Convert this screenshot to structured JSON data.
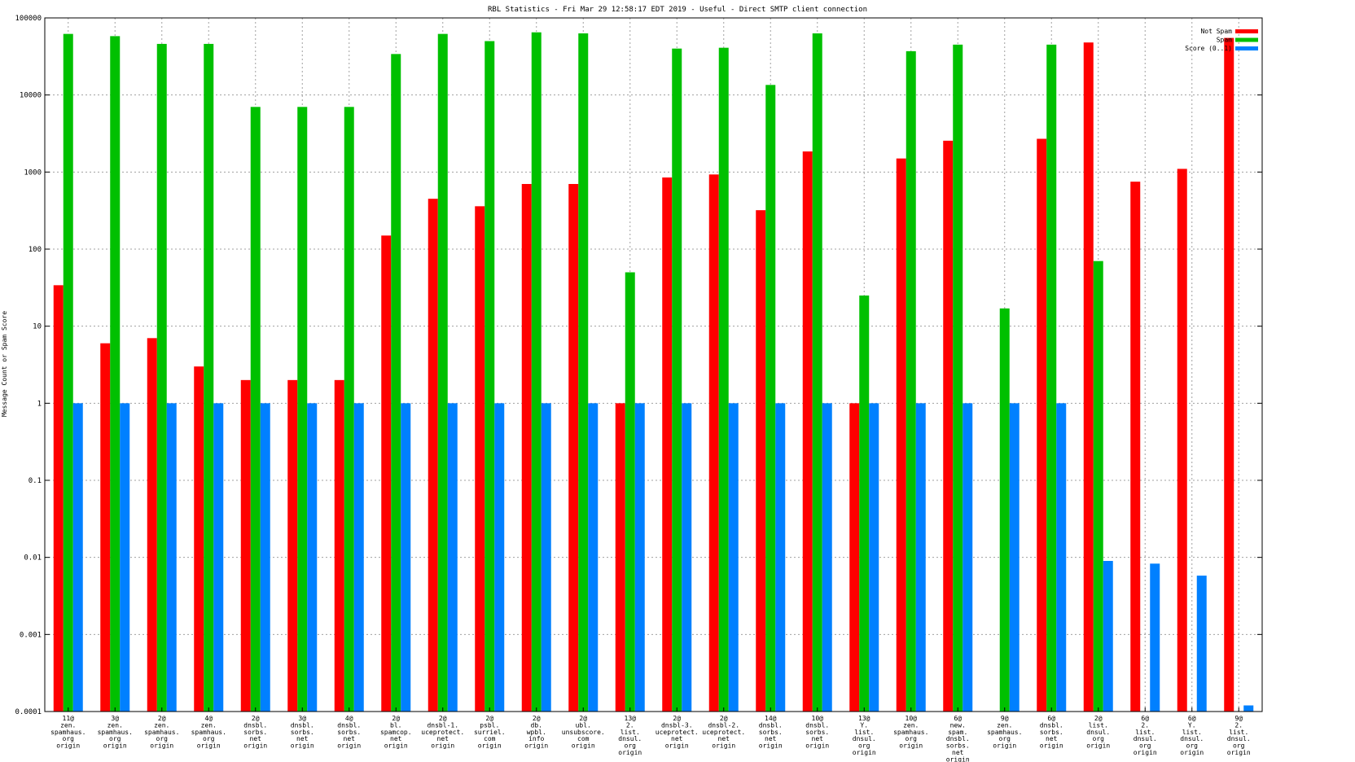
{
  "colors": {
    "not_spam": "#ff0000",
    "spam": "#00c000",
    "score": "#0080ff",
    "grid": "#a0a0a0",
    "axis": "#000000"
  },
  "chart_data": {
    "type": "bar",
    "title": "RBL Statistics - Fri Mar 29 12:58:17 EDT 2019 - Useful - Direct SMTP client connection",
    "xlabel": "",
    "ylabel": "Message Count or Spam Score",
    "yscale": "log",
    "ylim": [
      0.0001,
      100000
    ],
    "yticks": [
      "0.0001",
      "0.001",
      "0.01",
      "0.1",
      "1",
      "10",
      "100",
      "1000",
      "10000",
      "100000"
    ],
    "grid": true,
    "legend_position": "top-right",
    "categories": [
      [
        "11@",
        "zen.",
        "spamhaus.",
        "org",
        "origin"
      ],
      [
        "3@",
        "zen.",
        "spamhaus.",
        "org",
        "origin"
      ],
      [
        "2@",
        "zen.",
        "spamhaus.",
        "org",
        "origin"
      ],
      [
        "4@",
        "zen.",
        "spamhaus.",
        "org",
        "origin"
      ],
      [
        "2@",
        "dnsbl.",
        "sorbs.",
        "net",
        "origin"
      ],
      [
        "3@",
        "dnsbl.",
        "sorbs.",
        "net",
        "origin"
      ],
      [
        "4@",
        "dnsbl.",
        "sorbs.",
        "net",
        "origin"
      ],
      [
        "2@",
        "bl.",
        "spamcop.",
        "net",
        "origin"
      ],
      [
        "2@",
        "dnsbl-1.",
        "uceprotect.",
        "net",
        "origin"
      ],
      [
        "2@",
        "psbl.",
        "surriel.",
        "com",
        "origin"
      ],
      [
        "2@",
        "db.",
        "wpbl.",
        "info",
        "origin"
      ],
      [
        "2@",
        "ubl.",
        "unsubscore.",
        "com",
        "origin"
      ],
      [
        "13@",
        "2.",
        "list.",
        "dnsul.",
        "org",
        "origin"
      ],
      [
        "2@",
        "dnsbl-3.",
        "uceprotect.",
        "net",
        "origin"
      ],
      [
        "2@",
        "dnsbl-2.",
        "uceprotect.",
        "net",
        "origin"
      ],
      [
        "14@",
        "dnsbl.",
        "sorbs.",
        "net",
        "origin"
      ],
      [
        "10@",
        "dnsbl.",
        "sorbs.",
        "net",
        "origin"
      ],
      [
        "13@",
        "Y.",
        "list.",
        "dnsul.",
        "org",
        "origin"
      ],
      [
        "10@",
        "zen.",
        "spamhaus.",
        "org",
        "origin"
      ],
      [
        "6@",
        "new.",
        "spam.",
        "dnsbl.",
        "sorbs.",
        "net",
        "origin"
      ],
      [
        "9@",
        "zen.",
        "spamhaus.",
        "org",
        "origin"
      ],
      [
        "6@",
        "dnsbl.",
        "sorbs.",
        "net",
        "origin"
      ],
      [
        "2@",
        "list.",
        "dnsul.",
        "org",
        "origin"
      ],
      [
        "6@",
        "2.",
        "list.",
        "dnsul.",
        "org",
        "origin"
      ],
      [
        "6@",
        "Y.",
        "list.",
        "dnsul.",
        "org",
        "origin"
      ],
      [
        "9@",
        "2.",
        "list.",
        "dnsul.",
        "org",
        "origin"
      ]
    ],
    "series": [
      {
        "name": "Not Spam",
        "color_key": "not_spam",
        "values": [
          34,
          6,
          7,
          3,
          2,
          2,
          2,
          150,
          450,
          360,
          700,
          700,
          1,
          850,
          930,
          320,
          1850,
          1,
          1500,
          2550,
          null,
          2700,
          48000,
          750,
          1100,
          55000
        ]
      },
      {
        "name": "Spam",
        "color_key": "spam",
        "values": [
          62000,
          58000,
          46000,
          46000,
          7000,
          7000,
          7000,
          34000,
          62000,
          50000,
          65000,
          63000,
          50,
          40000,
          41000,
          13500,
          63000,
          25,
          37000,
          45000,
          17,
          45000,
          70,
          null,
          null,
          null
        ]
      },
      {
        "name": "Score (0..1)",
        "color_key": "score",
        "values": [
          1,
          1,
          1,
          1,
          1,
          1,
          1,
          1,
          1,
          1,
          1,
          1,
          1,
          1,
          1,
          1,
          1,
          1,
          1,
          1,
          1,
          1,
          0.009,
          0.0083,
          0.0058,
          0.00012
        ]
      }
    ]
  }
}
